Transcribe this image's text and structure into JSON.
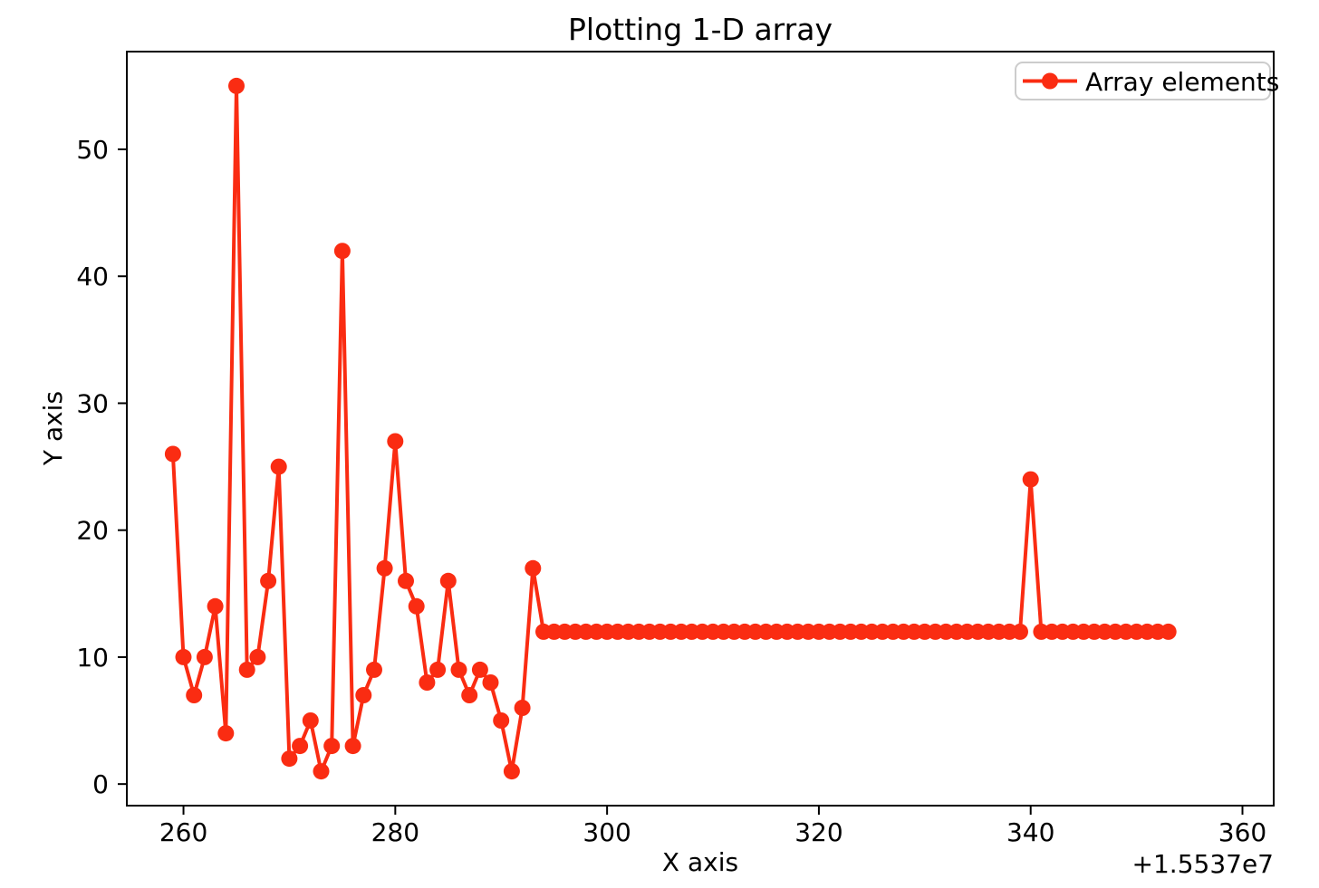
{
  "figure": {
    "background_color": "#ffffff",
    "spine_color": "#000000",
    "text_color": "#000000"
  },
  "chart_data": {
    "type": "line",
    "title": "Plotting 1-D array",
    "xlabel": "X axis",
    "ylabel": "Y axis",
    "x_offset_label": "+1.5537e7",
    "x_offset_base": 15537000,
    "grid": false,
    "legend_position": "upper right",
    "legend_border_color": "#cccccc",
    "xlim": [
      254.65,
      362.95
    ],
    "ylim": [
      -1.7,
      57.7
    ],
    "xticks": [
      "260",
      "280",
      "300",
      "320",
      "340",
      "360"
    ],
    "xtick_values": [
      260,
      280,
      300,
      320,
      340,
      360
    ],
    "yticks": [
      "0",
      "10",
      "20",
      "30",
      "40",
      "50"
    ],
    "ytick_values": [
      0,
      10,
      20,
      30,
      40,
      50
    ],
    "series": [
      {
        "name": "Array elements",
        "color": "#fa2c12",
        "marker": "circle",
        "x_start": 259,
        "x_step": 1,
        "values": [
          26,
          10,
          7,
          10,
          14,
          4,
          55,
          9,
          10,
          16,
          25,
          2,
          3,
          5,
          1,
          3,
          42,
          3,
          7,
          9,
          17,
          27,
          16,
          14,
          8,
          9,
          16,
          9,
          7,
          9,
          8,
          5,
          1,
          6,
          17,
          12,
          12,
          12,
          12,
          12,
          12,
          12,
          12,
          12,
          12,
          12,
          12,
          12,
          12,
          12,
          12,
          12,
          12,
          12,
          12,
          12,
          12,
          12,
          12,
          12,
          12,
          12,
          12,
          12,
          12,
          12,
          12,
          12,
          12,
          12,
          12,
          12,
          12,
          12,
          12,
          12,
          12,
          12,
          12,
          12,
          12,
          24,
          12,
          12,
          12,
          12,
          12,
          12,
          12,
          12,
          12,
          12,
          12,
          12,
          12
        ]
      }
    ]
  }
}
